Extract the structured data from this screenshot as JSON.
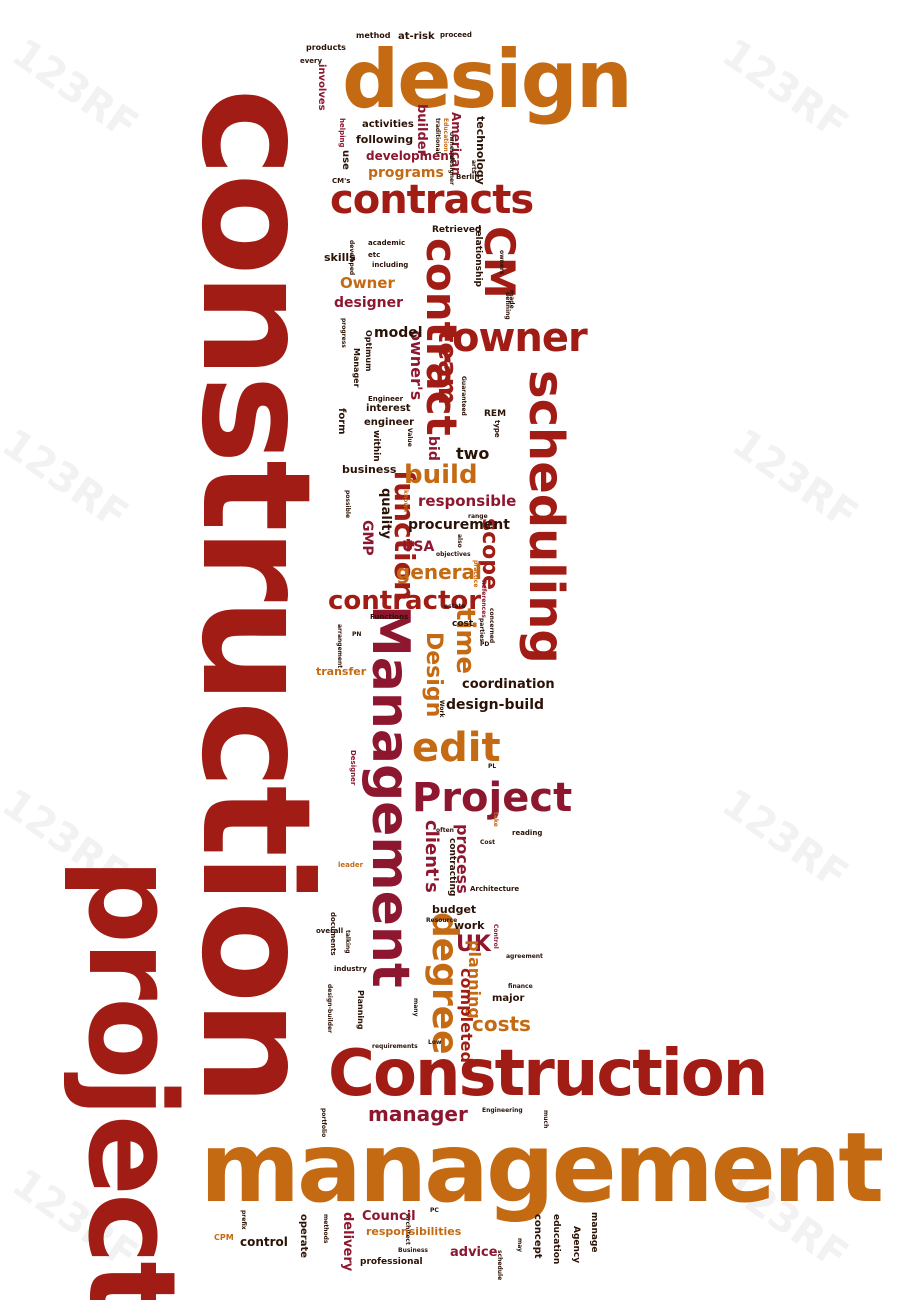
{
  "watermark": "123RF",
  "words": {
    "construction": "construction",
    "project": "project",
    "management": "management",
    "construction_cap": "Construction",
    "design": "design",
    "management_cap": "Management",
    "scheduling": "scheduling",
    "contracts": "contracts",
    "cm": "CM",
    "owner": "owner",
    "contract": "contract",
    "project_cap": "Project",
    "edit": "edit",
    "degree": "degree",
    "contractor": "contractor",
    "function": "function",
    "build": "build",
    "team": "team",
    "time": "time",
    "scope": "scope",
    "general": "general",
    "design_cap": "Design",
    "manager": "manager",
    "costs": "costs",
    "uk": "UK",
    "planning": "planning",
    "completed": "completed",
    "client_s": "client's",
    "process": "process",
    "design_build": "design-build",
    "coordination": "coordination",
    "responsible": "responsible",
    "procurement": "procurement",
    "usa": "USA",
    "gmp": "GMP",
    "quality": "quality",
    "two": "two",
    "bid": "bid",
    "owner_s": "owner's",
    "model": "model",
    "designer": "designer",
    "owner_cap": "Owner",
    "programs": "programs",
    "development": "development",
    "following": "following",
    "activities": "activities",
    "builder": "builder",
    "american": "American",
    "technology": "technology",
    "products": "products",
    "method": "method",
    "at_risk": "at-risk",
    "proceed": "proceed",
    "every": "every",
    "involves": "involves",
    "use": "use",
    "helping": "helping",
    "traditional": "traditional",
    "education_sm": "Education",
    "owner_designer": "owner-designer",
    "arts": "arts",
    "berlin": "Berlin",
    "cm_s": "CM's",
    "retrieved": "Retrieved",
    "relationship": "relationship",
    "skills": "skills",
    "academic": "academic",
    "etc": "etc",
    "including": "including",
    "developed": "developed",
    "owners": "owners",
    "made": "made",
    "defining": "defining",
    "progress": "progress",
    "optimum": "Optimum",
    "manager_cap": "Manager",
    "guaranteed": "Guaranteed",
    "engineer_cap": "Engineer",
    "engineer": "engineer",
    "interest": "interest",
    "form": "form",
    "within": "within",
    "value": "Value",
    "type": "type",
    "rem": "REM",
    "business": "business",
    "possible": "possible",
    "known": "known",
    "range": "range",
    "also": "also",
    "objectives": "objectives",
    "practice": "practice",
    "references": "References",
    "estate": "estate",
    "parties": "parties",
    "concerned": "concerned",
    "pd": "PD",
    "functions": "Functions",
    "cost": "cost",
    "pn": "PN",
    "arrangement": "arrangement",
    "transfer": "transfer",
    "work_sm": "Work",
    "pl": "PL",
    "designer_cap": "Designer",
    "often": "often",
    "reading": "reading",
    "cost_cap": "Cost",
    "take": "take",
    "leader": "leader",
    "contracting": "contracting",
    "architecture": "Architecture",
    "budget": "budget",
    "resource": "Resource",
    "work": "work",
    "control_cap": "Control",
    "overall": "overall",
    "documents": "documents",
    "talking": "talking",
    "agreement": "agreement",
    "industry": "industry",
    "design_builder": "design-builder",
    "planning_cap": "Planning",
    "major": "major",
    "finance": "finance",
    "many": "many",
    "requirements": "requirements",
    "low": "Low",
    "portfolio": "portfolio",
    "engineering": "Engineering",
    "much": "much",
    "prefix": "prefix",
    "methods": "methods",
    "architect": "Architect",
    "pc": "PC",
    "council": "Council",
    "agency": "Agency",
    "manage": "manage",
    "cpm": "CPM",
    "control": "control",
    "operate": "operate",
    "delivery": "delivery",
    "responsibilities": "responsibilities",
    "concept": "concept",
    "education": "education",
    "advice": "advice",
    "business_cap": "Business",
    "professional": "professional",
    "may": "may",
    "schedule": "schedule"
  },
  "colors": {
    "red": "#a01c14",
    "crimson": "#8e1730",
    "orange": "#c46a12",
    "dark": "#2b1206"
  }
}
